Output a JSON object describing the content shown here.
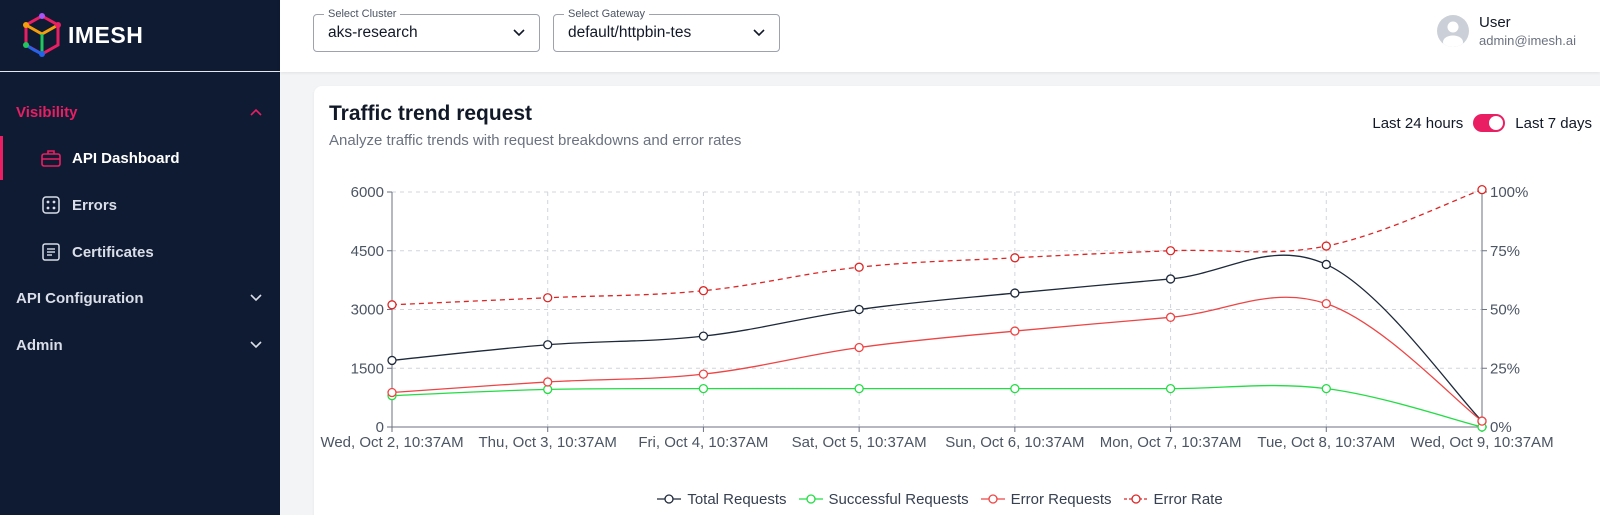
{
  "app": {
    "name": "IMESH"
  },
  "sidebar": {
    "sections": [
      {
        "label": "Visibility",
        "expanded": true,
        "items": [
          {
            "label": "API Dashboard",
            "icon": "briefcase-icon",
            "selected": true
          },
          {
            "label": "Errors",
            "icon": "dice-icon"
          },
          {
            "label": "Certificates",
            "icon": "certificate-icon"
          }
        ]
      },
      {
        "label": "API Configuration",
        "expanded": false
      },
      {
        "label": "Admin",
        "expanded": false
      }
    ]
  },
  "topbar": {
    "cluster": {
      "label": "Select Cluster",
      "value": "aks-research"
    },
    "gateway": {
      "label": "Select Gateway",
      "value": "default/httpbin-tes"
    },
    "user": {
      "name": "User",
      "email": "admin@imesh.ai"
    }
  },
  "card": {
    "title": "Traffic trend request",
    "subtitle": "Analyze traffic trends with request breakdowns and error rates",
    "toggle": {
      "left_label": "Last 24 hours",
      "right_label": "Last 7 days",
      "on": true
    }
  },
  "colors": {
    "accent": "#e91e63",
    "sidebar_bg": "#0f1b33"
  },
  "chart_data": {
    "type": "line",
    "categories": [
      "Wed, Oct 2, 10:37AM",
      "Thu, Oct 3, 10:37AM",
      "Fri, Oct 4, 10:37AM",
      "Sat, Oct 5, 10:37AM",
      "Sun, Oct 6, 10:37AM",
      "Mon, Oct 7, 10:37AM",
      "Tue, Oct 8, 10:37AM",
      "Wed, Oct 9, 10:37AM"
    ],
    "y_left": {
      "min": 0,
      "max": 6000,
      "ticks": [
        "0",
        "1500",
        "3000",
        "4500",
        "6000"
      ]
    },
    "y_right": {
      "min": 0,
      "max": 100,
      "ticks": [
        "0%",
        "25%",
        "50%",
        "75%",
        "100%"
      ]
    },
    "grid": true,
    "legend_position": "bottom",
    "series": [
      {
        "name": "Total Requests",
        "axis": "left",
        "color": "#1e293b",
        "dashed": false,
        "values": [
          1700,
          2100,
          2320,
          3000,
          3420,
          3780,
          4150,
          150
        ]
      },
      {
        "name": "Successful Requests",
        "axis": "left",
        "color": "#22dd44",
        "dashed": false,
        "values": [
          800,
          960,
          980,
          980,
          980,
          980,
          980,
          0
        ]
      },
      {
        "name": "Error Requests",
        "axis": "left",
        "color": "#ef4444",
        "dashed": false,
        "values": [
          880,
          1150,
          1350,
          2030,
          2450,
          2800,
          3150,
          150
        ]
      },
      {
        "name": "Error Rate",
        "axis": "right",
        "color": "#dc2626",
        "dashed": true,
        "values": [
          52,
          55,
          58,
          68,
          72,
          75,
          77,
          101
        ]
      }
    ]
  }
}
